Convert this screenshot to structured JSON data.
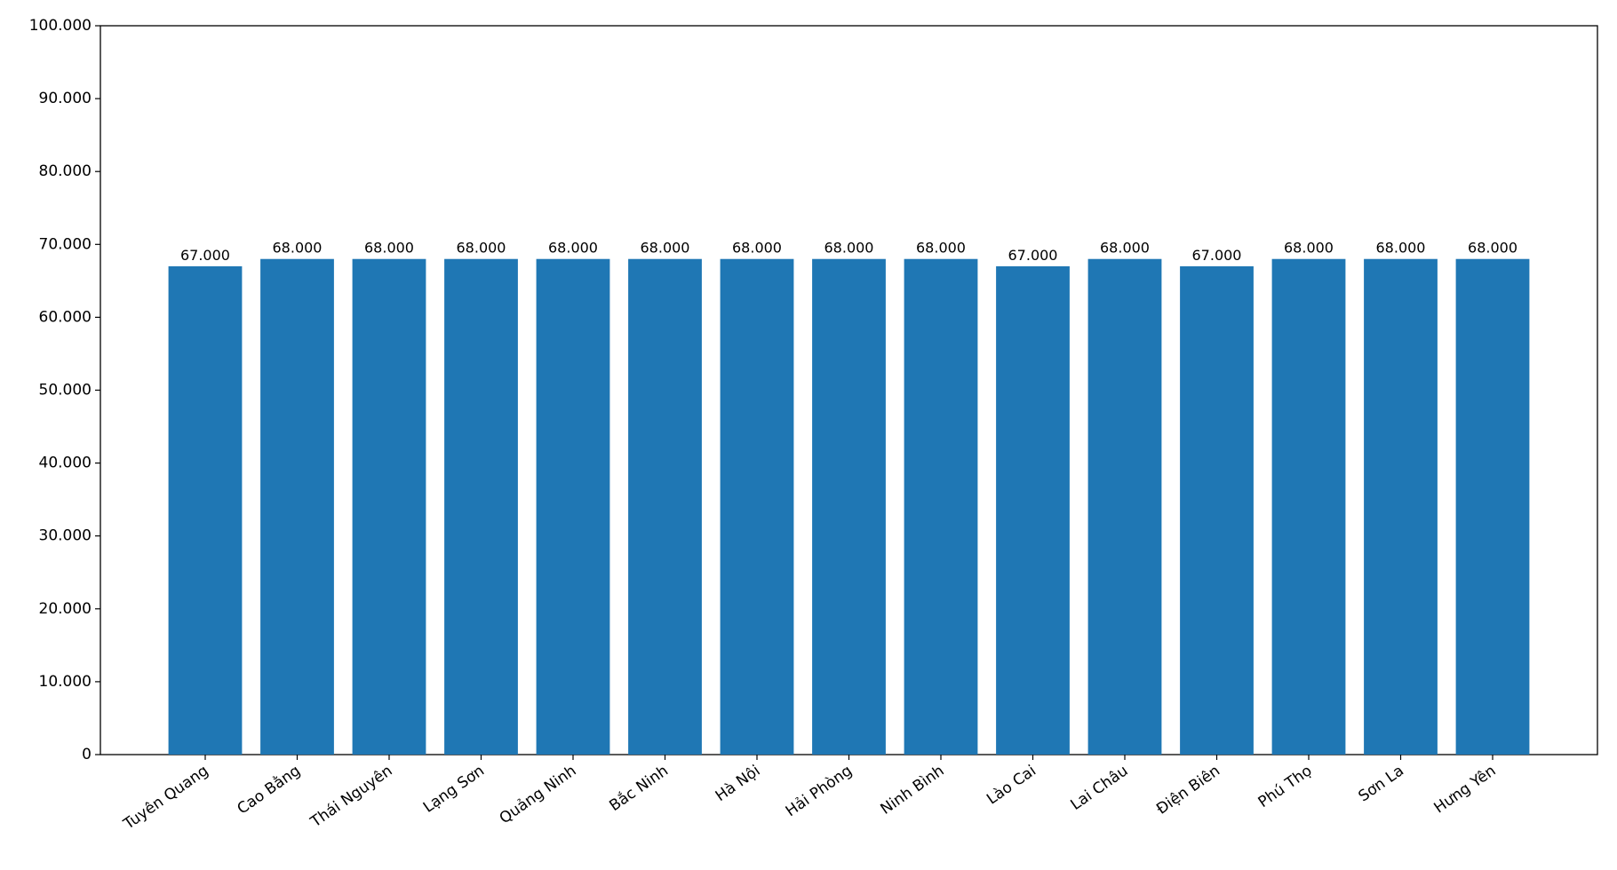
{
  "chart_data": {
    "type": "bar",
    "categories": [
      "Tuyên Quang",
      "Cao Bằng",
      "Thái Nguyên",
      "Lạng Sơn",
      "Quảng Ninh",
      "Bắc Ninh",
      "Hà Nội",
      "Hải Phòng",
      "Ninh Bình",
      "Lào Cai",
      "Lai Châu",
      "Điện Biên",
      "Phú Thọ",
      "Sơn La",
      "Hưng Yên"
    ],
    "values": [
      67000,
      68000,
      68000,
      68000,
      68000,
      68000,
      68000,
      68000,
      68000,
      67000,
      68000,
      67000,
      68000,
      68000,
      68000
    ],
    "value_labels": [
      "67.000",
      "68.000",
      "68.000",
      "68.000",
      "68.000",
      "68.000",
      "68.000",
      "68.000",
      "68.000",
      "67.000",
      "68.000",
      "67.000",
      "68.000",
      "68.000",
      "68.000"
    ],
    "color": "#1f77b4",
    "ylim": [
      0,
      100000
    ],
    "yticks": [
      0,
      {
        "value": 10000,
        "label": "10.000"
      },
      {
        "value": 20000,
        "label": "20.000"
      },
      {
        "value": 30000,
        "label": "30.000"
      },
      {
        "value": 40000,
        "label": "40.000"
      },
      {
        "value": 50000,
        "label": "50.000"
      },
      {
        "value": 60000,
        "label": "60.000"
      },
      {
        "value": 70000,
        "label": "70.000"
      },
      {
        "value": 80000,
        "label": "80.000"
      },
      {
        "value": 90000,
        "label": "90.000"
      },
      {
        "value": 100000,
        "label": "100.000"
      }
    ],
    "grid": false
  }
}
